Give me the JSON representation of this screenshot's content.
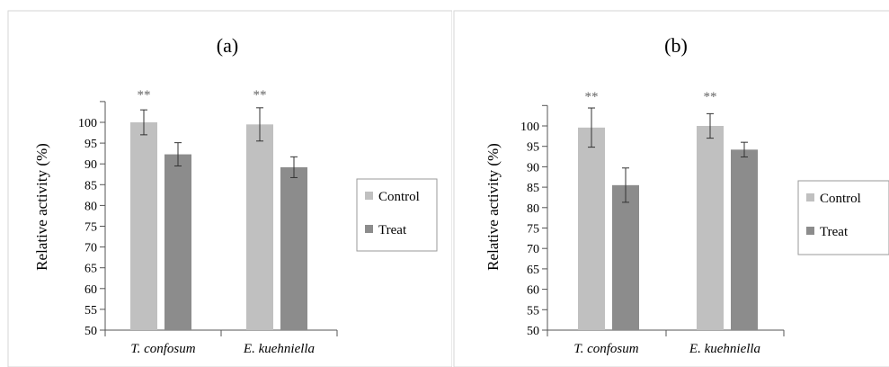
{
  "chart_data": [
    {
      "type": "bar",
      "title": "(a)",
      "xlabel": "",
      "ylabel": "Relative activity (%)",
      "ylim": [
        50,
        100
      ],
      "yticks": [
        50,
        55,
        60,
        65,
        70,
        75,
        80,
        85,
        90,
        95,
        100
      ],
      "grid": false,
      "legend_position": "right",
      "categories": [
        "T. confosum",
        "E. kuehniella"
      ],
      "series": [
        {
          "name": "Control",
          "values": [
            100,
            99.5
          ],
          "errors": [
            3,
            4
          ],
          "color": "#c0c0c0"
        },
        {
          "name": "Treat",
          "values": [
            92.3,
            89.2
          ],
          "errors": [
            2.8,
            2.5
          ],
          "color": "#8c8c8c"
        }
      ],
      "annotations": [
        {
          "category": "T. confosum",
          "series": "Control",
          "text": "**"
        },
        {
          "category": "E. kuehniella",
          "series": "Control",
          "text": "**"
        }
      ]
    },
    {
      "type": "bar",
      "title": "(b)",
      "xlabel": "",
      "ylabel": "Relative activity (%)",
      "ylim": [
        50,
        100
      ],
      "yticks": [
        50,
        55,
        60,
        65,
        70,
        75,
        80,
        85,
        90,
        95,
        100
      ],
      "grid": false,
      "legend_position": "right",
      "categories": [
        "T. confosum",
        "E. kuehniella"
      ],
      "series": [
        {
          "name": "Control",
          "values": [
            99.6,
            100
          ],
          "errors": [
            4.8,
            3
          ],
          "color": "#c0c0c0"
        },
        {
          "name": "Treat",
          "values": [
            85.5,
            94.2
          ],
          "errors": [
            4.2,
            1.8
          ],
          "color": "#8c8c8c"
        }
      ],
      "annotations": [
        {
          "category": "T. confosum",
          "series": "Control",
          "text": "**"
        },
        {
          "category": "E. kuehniella",
          "series": "Control",
          "text": "**"
        }
      ]
    }
  ]
}
